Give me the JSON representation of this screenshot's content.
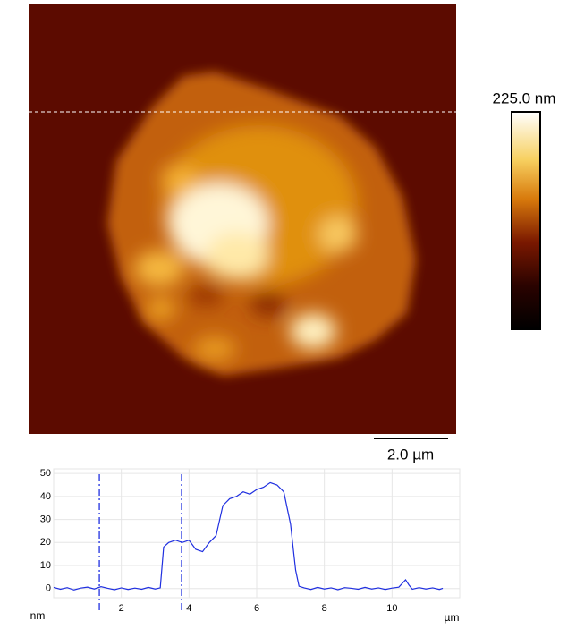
{
  "image": {
    "colorbar_label": "225.0 nm",
    "scale_bar_label": "2.0 µm"
  },
  "chart_data": {
    "type": "line",
    "x_label": "µm",
    "y_label": "nm",
    "x": [
      0,
      0.2,
      0.4,
      0.6,
      0.8,
      1.0,
      1.2,
      1.4,
      1.6,
      1.8,
      2.0,
      2.2,
      2.4,
      2.6,
      2.8,
      3.0,
      3.15,
      3.25,
      3.4,
      3.6,
      3.8,
      4.0,
      4.2,
      4.4,
      4.6,
      4.8,
      5.0,
      5.2,
      5.4,
      5.6,
      5.8,
      6.0,
      6.2,
      6.4,
      6.6,
      6.8,
      7.0,
      7.15,
      7.25,
      7.4,
      7.6,
      7.8,
      8.0,
      8.2,
      8.4,
      8.6,
      8.8,
      9.0,
      9.2,
      9.4,
      9.6,
      9.8,
      10.0,
      10.2,
      10.4,
      10.5,
      10.6,
      10.8,
      11.0,
      11.2,
      11.4,
      11.5
    ],
    "values": [
      0.5,
      -0.3,
      0.4,
      -0.6,
      0.2,
      0.6,
      -0.2,
      0.8,
      0.1,
      -0.5,
      0.3,
      -0.4,
      0.2,
      -0.3,
      0.5,
      -0.2,
      0.3,
      18,
      20,
      21,
      20,
      21,
      17,
      16,
      20,
      23,
      36,
      39,
      40,
      42,
      41,
      43,
      44,
      46,
      45,
      42,
      28,
      8,
      1,
      0.3,
      -0.4,
      0.5,
      -0.2,
      0.3,
      -0.5,
      0.4,
      0.1,
      -0.3,
      0.5,
      -0.2,
      0.3,
      -0.4,
      0.2,
      0.6,
      3.8,
      1.5,
      -0.3,
      0.4,
      -0.2,
      0.3,
      -0.4,
      0.1
    ],
    "color": "#1f2fe0",
    "cursors": [
      1.35,
      3.78
    ],
    "xlim": [
      0,
      12
    ],
    "ylim": [
      -4,
      52
    ],
    "xticks": [
      2,
      4,
      6,
      8,
      10
    ],
    "yticks": [
      0,
      10,
      20,
      30,
      40,
      50
    ],
    "grid": true
  }
}
